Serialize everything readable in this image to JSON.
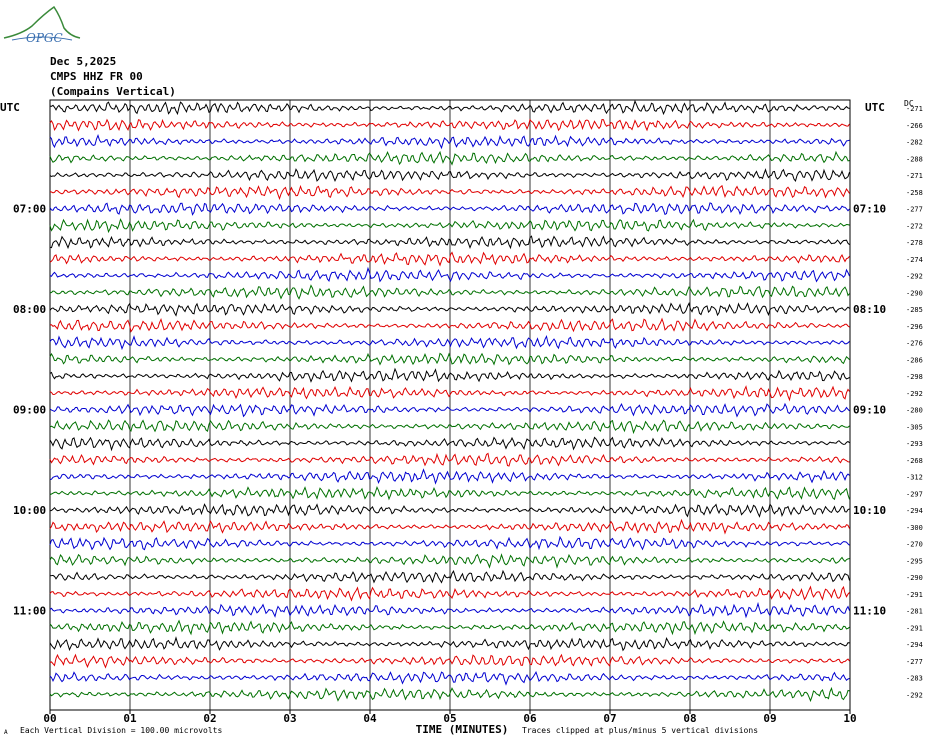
{
  "header": {
    "date": "Dec 5,2025",
    "station": "CMPS HHZ FR 00",
    "location": "(Compains Vertical)",
    "logo_text": "OPGC"
  },
  "chart_data": {
    "type": "line",
    "title": "Dec 5,2025",
    "xlabel": "TIME (MINUTES)",
    "x_ticks": [
      "00",
      "01",
      "02",
      "03",
      "04",
      "05",
      "06",
      "07",
      "08",
      "09",
      "10"
    ],
    "xlim": [
      0,
      10
    ],
    "left_axis_label": "UTC",
    "right_axis_label": "UTC",
    "dc_label": "DC",
    "left_hour_labels": [
      {
        "row": 6,
        "label": "07:00"
      },
      {
        "row": 12,
        "label": "08:00"
      },
      {
        "row": 18,
        "label": "09:00"
      },
      {
        "row": 24,
        "label": "10:00"
      },
      {
        "row": 30,
        "label": "11:00"
      }
    ],
    "right_hour_labels": [
      {
        "row": 6,
        "label": "07:10"
      },
      {
        "row": 12,
        "label": "08:10"
      },
      {
        "row": 18,
        "label": "09:10"
      },
      {
        "row": 24,
        "label": "10:10"
      },
      {
        "row": 30,
        "label": "11:10"
      }
    ],
    "trace_colors": [
      "#000000",
      "#e00000",
      "#0000d0",
      "#007000"
    ],
    "dc_offsets": [
      -271,
      -266,
      -282,
      -288,
      -271,
      -258,
      -277,
      -272,
      -278,
      -274,
      -292,
      -290,
      -285,
      -296,
      -276,
      -286,
      -298,
      -292,
      -280,
      -305,
      -293,
      -268,
      -312,
      -297,
      -294,
      -300,
      -270,
      -295,
      -290,
      -291,
      -281,
      -291,
      -294,
      -277,
      -283,
      -292
    ],
    "footer_left": "Each Vertical Division =  100.00 microvolts",
    "footer_right": "Traces clipped at plus/minus 5 vertical divisions",
    "footer_mark": "A"
  }
}
